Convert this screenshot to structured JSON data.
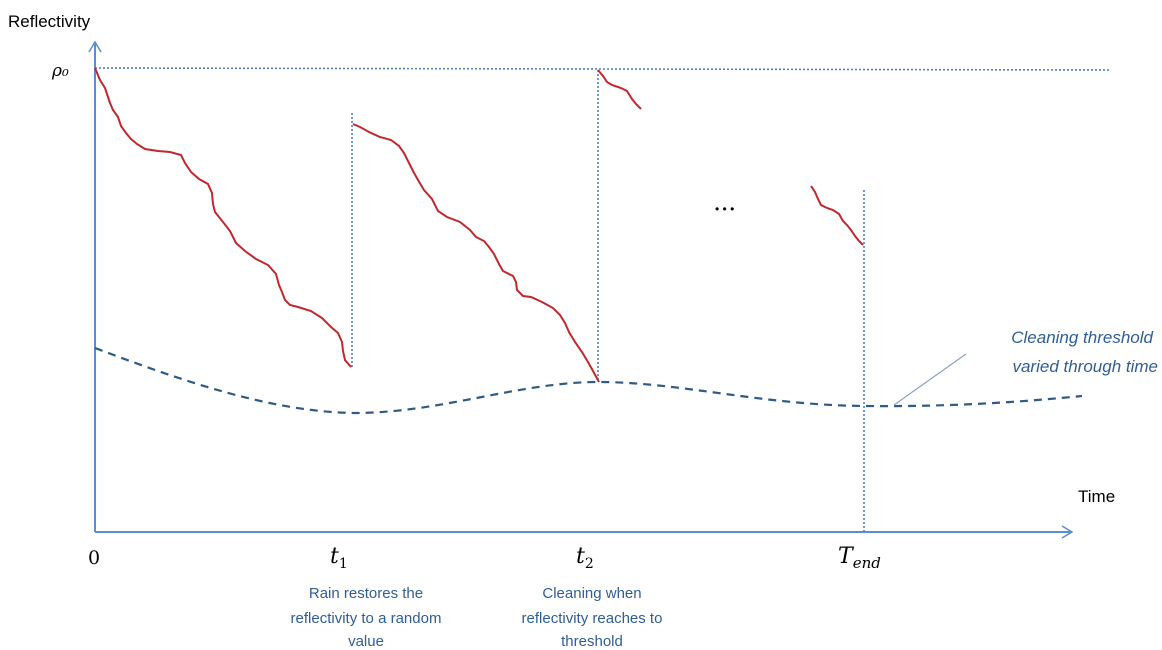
{
  "axes": {
    "y_label": "Reflectivity",
    "x_label": "Time",
    "y_max_label": "ρ₀",
    "origin_label": "0"
  },
  "ticks": {
    "t1": "t",
    "t1_sub": "1",
    "t2": "t",
    "t2_sub": "2",
    "tend": "T",
    "tend_sub": "end"
  },
  "annotations": {
    "rain": [
      "Rain restores the",
      "reflectivity to a random",
      "value"
    ],
    "cleaning": [
      "Cleaning when",
      "reflectivity reaches to",
      "threshold"
    ],
    "threshold": [
      "Cleaning threshold",
      "varied through time"
    ],
    "ellipsis": "• • •"
  },
  "colors": {
    "axis": "#5b8ed1",
    "curve": "#c0282d",
    "threshold": "#2f5b84",
    "dotted": "#4f7fc4",
    "annotation": "#2f5e96",
    "text": "#000000"
  }
}
